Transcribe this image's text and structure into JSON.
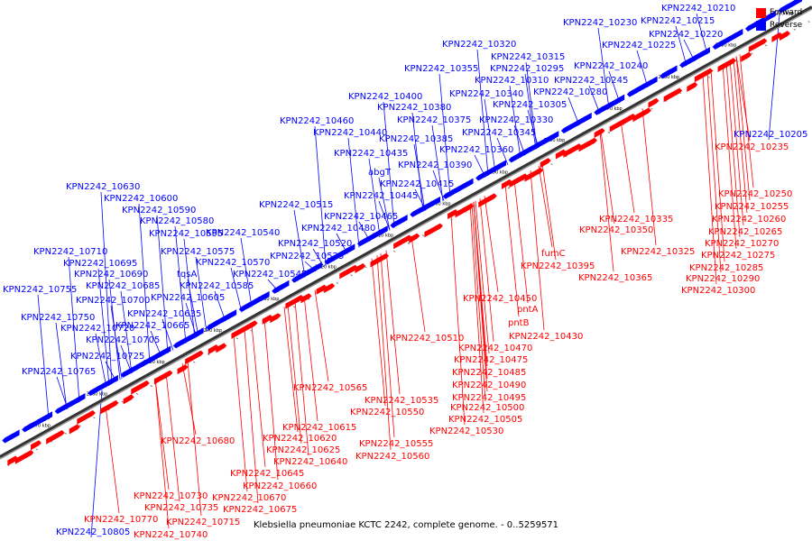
{
  "caption": "Klebsiella pneumoniae KCTC 2242, complete genome. - 0..5259571",
  "legend": {
    "forward": {
      "label": "Forward",
      "color": "#ff0000"
    },
    "reverse": {
      "label": "Reverse",
      "color": "#0000ff"
    }
  },
  "colors": {
    "forward": "#ff0000",
    "reverse": "#0000ff",
    "backbone": "#888888"
  },
  "ruler": {
    "start_kbp": 2140,
    "end_kbp": 2270,
    "step_kbp": 10,
    "tick_labels": [
      "2140 kbp",
      "2150 kbp",
      "2160 kbp",
      "2170 kbp",
      "2180 kbp",
      "2190 kbp",
      "2200 kbp",
      "2210 kbp",
      "2220 kbp",
      "2230 kbp",
      "2240 kbp",
      "2250 kbp",
      "2260 kbp",
      "2270 kbp"
    ]
  },
  "reverse_labels": [
    "KPN2242_10210",
    "KPN2242_10230",
    "KPN2242_10215",
    "KPN2242_10220",
    "KPN2242_10225",
    "KPN2242_10320",
    "KPN2242_10315",
    "KPN2242_10355",
    "KPN2242_10295",
    "KPN2242_10240",
    "KPN2242_10310",
    "KPN2242_10245",
    "KPN2242_10340",
    "KPN2242_10280",
    "KPN2242_10400",
    "KPN2242_10380",
    "KPN2242_10305",
    "KPN2242_10460",
    "KPN2242_10375",
    "KPN2242_10330",
    "KPN2242_10440",
    "KPN2242_10345",
    "KPN2242_10385",
    "KPN2242_10435",
    "KPN2242_10360",
    "KPN2242_10390",
    "KPN2242_10205",
    "abgT",
    "KPN2242_10415",
    "KPN2242_10630",
    "KPN2242_10445",
    "KPN2242_10600",
    "KPN2242_10515",
    "KPN2242_10590",
    "KPN2242_10465",
    "KPN2242_10580",
    "KPN2242_10480",
    "KPN2242_10595",
    "KPN2242_10540",
    "KPN2242_10520",
    "KPN2242_10710",
    "KPN2242_10575",
    "KPN2242_10525",
    "KPN2242_10695",
    "KPN2242_10570",
    "tqsA",
    "KPN2242_10690",
    "KPN2242_10545",
    "KPN2242_10685",
    "KPN2242_10585",
    "KPN2242_10755",
    "KPN2242_10700",
    "KPN2242_10605",
    "KPN2242_10635",
    "KPN2242_10750",
    "KPN2242_10720",
    "KPN2242_10665",
    "KPN2242_10705",
    "KPN2242_10725",
    "KPN2242_10765",
    "KPN2242_10805"
  ],
  "forward_labels": [
    "KPN2242_10235",
    "KPN2242_10250",
    "KPN2242_10255",
    "KPN2242_10260",
    "KPN2242_10335",
    "KPN2242_10265",
    "KPN2242_10350",
    "KPN2242_10270",
    "fumC",
    "KPN2242_10325",
    "KPN2242_10275",
    "KPN2242_10395",
    "KPN2242_10285",
    "KPN2242_10365",
    "KPN2242_10290",
    "KPN2242_10300",
    "KPN2242_10450",
    "pntA",
    "pntB",
    "KPN2242_10430",
    "KPN2242_10510",
    "KPN2242_10470",
    "KPN2242_10475",
    "KPN2242_10485",
    "KPN2242_10565",
    "KPN2242_10490",
    "KPN2242_10535",
    "KPN2242_10495",
    "KPN2242_10550",
    "KPN2242_10500",
    "KPN2242_10505",
    "KPN2242_10615",
    "KPN2242_10530",
    "KPN2242_10680",
    "KPN2242_10620",
    "KPN2242_10555",
    "KPN2242_10625",
    "KPN2242_10560",
    "KPN2242_10640",
    "KPN2242_10645",
    "KPN2242_10660",
    "KPN2242_10730",
    "KPN2242_10670",
    "KPN2242_10735",
    "KPN2242_10675",
    "KPN2242_10770",
    "KPN2242_10715",
    "KPN2242_10740"
  ]
}
